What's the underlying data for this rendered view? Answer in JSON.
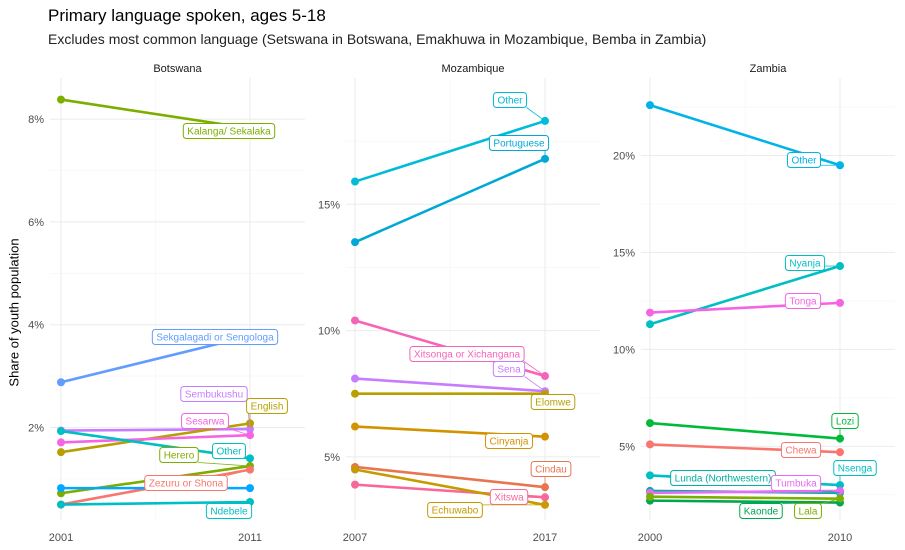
{
  "chart_data": {
    "type": "line",
    "title": "Primary language spoken, ages 5-18",
    "subtitle": "Excludes most common language (Setswana in Botswana, Emakhuwa in Mozambique, Bemba in Zambia)",
    "xlabel": "",
    "ylabel": "Share of youth population",
    "panels": [
      {
        "name": "Botswana",
        "x": [
          2001,
          2011
        ],
        "x_ticks": [
          "2001",
          "2011"
        ],
        "ylim": [
          0.2,
          8.8
        ],
        "y_ticks": [
          2,
          4,
          6,
          8
        ],
        "y_tick_labels": [
          "2%",
          "4%",
          "6%",
          "8%"
        ],
        "series": [
          {
            "name": "Kalanga/ Sekalaka",
            "values": [
              8.38,
              7.82
            ],
            "color": "#7cae00"
          },
          {
            "name": "Sekgalagadi or Sengologa",
            "values": [
              2.88,
              3.78
            ],
            "color": "#619cff"
          },
          {
            "name": "Sembukushu",
            "values": [
              1.94,
              1.97
            ],
            "color": "#c77cff"
          },
          {
            "name": "English",
            "values": [
              1.52,
              2.08
            ],
            "color": "#b79f00"
          },
          {
            "name": "Sesarwa",
            "values": [
              1.71,
              1.85
            ],
            "color": "#f564e3"
          },
          {
            "name": "Other",
            "values": [
              1.93,
              1.4
            ],
            "color": "#00bfc4"
          },
          {
            "name": "Herero",
            "values": [
              0.72,
              1.25
            ],
            "color": "#7cae00"
          },
          {
            "name": "Zezuru or Shona",
            "values": [
              0.5,
              1.18
            ],
            "color": "#f8766d"
          },
          {
            "name": "Ndebele",
            "values": [
              0.5,
              0.55
            ],
            "color": "#00bfc4"
          },
          {
            "name": "",
            "values": [
              0.82,
              0.82
            ],
            "color": "#00a9ff"
          }
        ]
      },
      {
        "name": "Mozambique",
        "x": [
          2007,
          2017
        ],
        "x_ticks": [
          "2007",
          "2017"
        ],
        "ylim": [
          2.5,
          20.0
        ],
        "y_ticks": [
          5,
          10,
          15
        ],
        "y_tick_labels": [
          "5%",
          "10%",
          "15%"
        ],
        "series": [
          {
            "name": "Other",
            "values": [
              15.9,
              18.3
            ],
            "color": "#00bcd8"
          },
          {
            "name": "Portuguese",
            "values": [
              13.5,
              16.8
            ],
            "color": "#00a9d4"
          },
          {
            "name": "Xitsonga or Xichangana",
            "values": [
              10.4,
              8.2
            ],
            "color": "#f564b8"
          },
          {
            "name": "Sena",
            "values": [
              8.1,
              7.6
            ],
            "color": "#c77cff"
          },
          {
            "name": "Elomwe",
            "values": [
              7.5,
              7.5
            ],
            "color": "#b79f00"
          },
          {
            "name": "Cinyanja",
            "values": [
              6.2,
              5.8
            ],
            "color": "#d39200"
          },
          {
            "name": "Cindau",
            "values": [
              4.6,
              3.8
            ],
            "color": "#e7754f"
          },
          {
            "name": "Xitswa",
            "values": [
              3.9,
              3.4
            ],
            "color": "#f8669a"
          },
          {
            "name": "Echuwabo",
            "values": [
              4.5,
              3.1
            ],
            "color": "#c59b00"
          }
        ]
      },
      {
        "name": "Zambia",
        "x": [
          2000,
          2010
        ],
        "x_ticks": [
          "2000",
          "2010"
        ],
        "ylim": [
          1.2,
          24.0
        ],
        "y_ticks": [
          5,
          10,
          15,
          20
        ],
        "y_tick_labels": [
          "5%",
          "10%",
          "15%",
          "20%"
        ],
        "series": [
          {
            "name": "Other",
            "values": [
              22.6,
              19.5
            ],
            "color": "#00b4e8"
          },
          {
            "name": "Nyanja",
            "values": [
              11.3,
              14.3
            ],
            "color": "#00bfc4"
          },
          {
            "name": "Tonga",
            "values": [
              11.9,
              12.4
            ],
            "color": "#f564e3"
          },
          {
            "name": "Lozi",
            "values": [
              6.2,
              5.4
            ],
            "color": "#00ba38"
          },
          {
            "name": "Chewa",
            "values": [
              5.1,
              4.7
            ],
            "color": "#f8766d"
          },
          {
            "name": "Nsenga",
            "values": [
              3.5,
              3.0
            ],
            "color": "#00bfc4"
          },
          {
            "name": "Lunda (Northwestern)",
            "values": [
              2.7,
              2.6
            ],
            "color": "#00b0a0"
          },
          {
            "name": "Tumbuka",
            "values": [
              2.6,
              2.7
            ],
            "color": "#e76bf3"
          },
          {
            "name": "Kaonde",
            "values": [
              2.2,
              2.1
            ],
            "color": "#00a650"
          },
          {
            "name": "Lala",
            "values": [
              2.4,
              2.3
            ],
            "color": "#7cae00"
          }
        ]
      }
    ]
  }
}
